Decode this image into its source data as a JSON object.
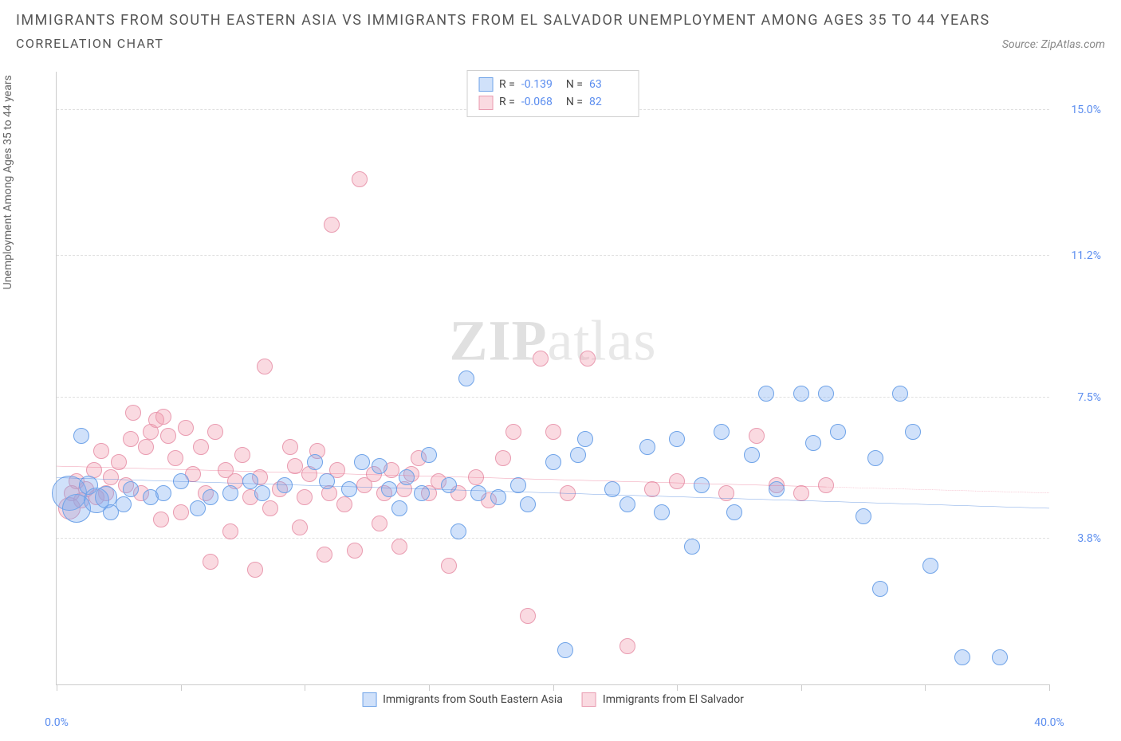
{
  "title": "IMMIGRANTS FROM SOUTH EASTERN ASIA VS IMMIGRANTS FROM EL SALVADOR UNEMPLOYMENT AMONG AGES 35 TO 44 YEARS",
  "subtitle": "CORRELATION CHART",
  "source": "Source: ZipAtlas.com",
  "ylabel": "Unemployment Among Ages 35 to 44 years",
  "watermark_a": "ZIP",
  "watermark_b": "atlas",
  "chart": {
    "type": "scatter",
    "xlim": [
      0,
      40
    ],
    "ylim": [
      0,
      16
    ],
    "xticks": [
      0,
      5,
      10,
      15,
      20,
      25,
      30,
      35,
      40
    ],
    "xaxis_min_label": "0.0%",
    "xaxis_max_label": "40.0%",
    "yticks": [
      {
        "v": 3.8,
        "label": "3.8%"
      },
      {
        "v": 7.5,
        "label": "7.5%"
      },
      {
        "v": 11.2,
        "label": "11.2%"
      },
      {
        "v": 15.0,
        "label": "15.0%"
      }
    ],
    "background_color": "#ffffff",
    "grid_color": "#e0e0e0",
    "axis_color": "#cccccc",
    "tick_label_color": "#5b8def",
    "point_base_radius": 10,
    "series": [
      {
        "name": "Immigrants from South Eastern Asia",
        "fill": "rgba(120,170,240,0.35)",
        "stroke": "#6fa3e8",
        "trend_color": "#3b78d8",
        "R": "-0.139",
        "N": "63",
        "trend": {
          "x1": 0,
          "y1": 5.4,
          "x2": 40,
          "y2": 4.6,
          "solid_until_x": 40
        },
        "points": [
          {
            "x": 0.5,
            "y": 5.0,
            "r": 22
          },
          {
            "x": 0.8,
            "y": 4.6,
            "r": 18
          },
          {
            "x": 1.0,
            "y": 6.5,
            "r": 10
          },
          {
            "x": 1.3,
            "y": 5.2,
            "r": 12
          },
          {
            "x": 1.6,
            "y": 4.8,
            "r": 16
          },
          {
            "x": 2.0,
            "y": 4.9,
            "r": 14
          },
          {
            "x": 2.2,
            "y": 4.5,
            "r": 10
          },
          {
            "x": 2.7,
            "y": 4.7,
            "r": 10
          },
          {
            "x": 3.0,
            "y": 5.1,
            "r": 10
          },
          {
            "x": 3.8,
            "y": 4.9,
            "r": 10
          },
          {
            "x": 4.3,
            "y": 5.0,
            "r": 10
          },
          {
            "x": 5.0,
            "y": 5.3,
            "r": 10
          },
          {
            "x": 5.7,
            "y": 4.6,
            "r": 10
          },
          {
            "x": 6.2,
            "y": 4.9,
            "r": 10
          },
          {
            "x": 7.0,
            "y": 5.0,
            "r": 10
          },
          {
            "x": 7.8,
            "y": 5.3,
            "r": 10
          },
          {
            "x": 8.3,
            "y": 5.0,
            "r": 10
          },
          {
            "x": 9.2,
            "y": 5.2,
            "r": 10
          },
          {
            "x": 10.4,
            "y": 5.8,
            "r": 10
          },
          {
            "x": 10.9,
            "y": 5.3,
            "r": 10
          },
          {
            "x": 11.8,
            "y": 5.1,
            "r": 10
          },
          {
            "x": 12.3,
            "y": 5.8,
            "r": 10
          },
          {
            "x": 13.0,
            "y": 5.7,
            "r": 10
          },
          {
            "x": 13.4,
            "y": 5.1,
            "r": 10
          },
          {
            "x": 13.8,
            "y": 4.6,
            "r": 10
          },
          {
            "x": 14.1,
            "y": 5.4,
            "r": 10
          },
          {
            "x": 14.7,
            "y": 5.0,
            "r": 10
          },
          {
            "x": 15.0,
            "y": 6.0,
            "r": 10
          },
          {
            "x": 15.8,
            "y": 5.2,
            "r": 10
          },
          {
            "x": 16.2,
            "y": 4.0,
            "r": 10
          },
          {
            "x": 16.5,
            "y": 8.0,
            "r": 10
          },
          {
            "x": 17.0,
            "y": 5.0,
            "r": 10
          },
          {
            "x": 17.8,
            "y": 4.9,
            "r": 10
          },
          {
            "x": 18.6,
            "y": 5.2,
            "r": 10
          },
          {
            "x": 19.0,
            "y": 4.7,
            "r": 10
          },
          {
            "x": 20.0,
            "y": 5.8,
            "r": 10
          },
          {
            "x": 20.5,
            "y": 0.9,
            "r": 10
          },
          {
            "x": 21.0,
            "y": 6.0,
            "r": 10
          },
          {
            "x": 21.3,
            "y": 6.4,
            "r": 10
          },
          {
            "x": 22.4,
            "y": 5.1,
            "r": 10
          },
          {
            "x": 23.0,
            "y": 4.7,
            "r": 10
          },
          {
            "x": 23.8,
            "y": 6.2,
            "r": 10
          },
          {
            "x": 24.4,
            "y": 4.5,
            "r": 10
          },
          {
            "x": 25.0,
            "y": 6.4,
            "r": 10
          },
          {
            "x": 25.6,
            "y": 3.6,
            "r": 10
          },
          {
            "x": 26.0,
            "y": 5.2,
            "r": 10
          },
          {
            "x": 26.8,
            "y": 6.6,
            "r": 10
          },
          {
            "x": 27.3,
            "y": 4.5,
            "r": 10
          },
          {
            "x": 28.0,
            "y": 6.0,
            "r": 10
          },
          {
            "x": 28.6,
            "y": 7.6,
            "r": 10
          },
          {
            "x": 29.0,
            "y": 5.1,
            "r": 10
          },
          {
            "x": 30.0,
            "y": 7.6,
            "r": 10
          },
          {
            "x": 30.5,
            "y": 6.3,
            "r": 10
          },
          {
            "x": 31.0,
            "y": 7.6,
            "r": 10
          },
          {
            "x": 31.5,
            "y": 6.6,
            "r": 10
          },
          {
            "x": 32.5,
            "y": 4.4,
            "r": 10
          },
          {
            "x": 33.0,
            "y": 5.9,
            "r": 10
          },
          {
            "x": 33.2,
            "y": 2.5,
            "r": 10
          },
          {
            "x": 34.0,
            "y": 7.6,
            "r": 10
          },
          {
            "x": 34.5,
            "y": 6.6,
            "r": 10
          },
          {
            "x": 35.2,
            "y": 3.1,
            "r": 10
          },
          {
            "x": 36.5,
            "y": 0.7,
            "r": 10
          },
          {
            "x": 38.0,
            "y": 0.7,
            "r": 10
          }
        ]
      },
      {
        "name": "Immigrants from El Salvador",
        "fill": "rgba(240,150,170,0.35)",
        "stroke": "#e99bb0",
        "trend_color": "#e86a8a",
        "R": "-0.068",
        "N": "82",
        "trend": {
          "x1": 0,
          "y1": 5.7,
          "x2": 40,
          "y2": 5.0,
          "solid_until_x": 31
        },
        "points": [
          {
            "x": 0.5,
            "y": 4.6,
            "r": 14
          },
          {
            "x": 0.6,
            "y": 5.0,
            "r": 10
          },
          {
            "x": 0.8,
            "y": 5.3,
            "r": 10
          },
          {
            "x": 1.0,
            "y": 4.8,
            "r": 10
          },
          {
            "x": 1.2,
            "y": 5.1,
            "r": 10
          },
          {
            "x": 1.5,
            "y": 5.6,
            "r": 10
          },
          {
            "x": 1.6,
            "y": 4.9,
            "r": 10
          },
          {
            "x": 1.8,
            "y": 6.1,
            "r": 10
          },
          {
            "x": 2.0,
            "y": 5.0,
            "r": 10
          },
          {
            "x": 2.2,
            "y": 5.4,
            "r": 10
          },
          {
            "x": 2.5,
            "y": 5.8,
            "r": 10
          },
          {
            "x": 2.8,
            "y": 5.2,
            "r": 10
          },
          {
            "x": 3.0,
            "y": 6.4,
            "r": 10
          },
          {
            "x": 3.1,
            "y": 7.1,
            "r": 10
          },
          {
            "x": 3.4,
            "y": 5.0,
            "r": 10
          },
          {
            "x": 3.6,
            "y": 6.2,
            "r": 10
          },
          {
            "x": 3.8,
            "y": 6.6,
            "r": 10
          },
          {
            "x": 4.0,
            "y": 6.9,
            "r": 10
          },
          {
            "x": 4.2,
            "y": 4.3,
            "r": 10
          },
          {
            "x": 4.3,
            "y": 7.0,
            "r": 10
          },
          {
            "x": 4.5,
            "y": 6.5,
            "r": 10
          },
          {
            "x": 4.8,
            "y": 5.9,
            "r": 10
          },
          {
            "x": 5.0,
            "y": 4.5,
            "r": 10
          },
          {
            "x": 5.2,
            "y": 6.7,
            "r": 10
          },
          {
            "x": 5.5,
            "y": 5.5,
            "r": 10
          },
          {
            "x": 5.8,
            "y": 6.2,
            "r": 10
          },
          {
            "x": 6.0,
            "y": 5.0,
            "r": 10
          },
          {
            "x": 6.2,
            "y": 3.2,
            "r": 10
          },
          {
            "x": 6.4,
            "y": 6.6,
            "r": 10
          },
          {
            "x": 6.8,
            "y": 5.6,
            "r": 10
          },
          {
            "x": 7.0,
            "y": 4.0,
            "r": 10
          },
          {
            "x": 7.2,
            "y": 5.3,
            "r": 10
          },
          {
            "x": 7.5,
            "y": 6.0,
            "r": 10
          },
          {
            "x": 7.8,
            "y": 4.9,
            "r": 10
          },
          {
            "x": 8.0,
            "y": 3.0,
            "r": 10
          },
          {
            "x": 8.2,
            "y": 5.4,
            "r": 10
          },
          {
            "x": 8.4,
            "y": 8.3,
            "r": 10
          },
          {
            "x": 8.6,
            "y": 4.6,
            "r": 10
          },
          {
            "x": 9.0,
            "y": 5.1,
            "r": 10
          },
          {
            "x": 9.4,
            "y": 6.2,
            "r": 10
          },
          {
            "x": 9.6,
            "y": 5.7,
            "r": 10
          },
          {
            "x": 9.8,
            "y": 4.1,
            "r": 10
          },
          {
            "x": 10.0,
            "y": 4.9,
            "r": 10
          },
          {
            "x": 10.2,
            "y": 5.5,
            "r": 10
          },
          {
            "x": 10.5,
            "y": 6.1,
            "r": 10
          },
          {
            "x": 10.8,
            "y": 3.4,
            "r": 10
          },
          {
            "x": 11.0,
            "y": 5.0,
            "r": 10
          },
          {
            "x": 11.1,
            "y": 12.0,
            "r": 10
          },
          {
            "x": 11.3,
            "y": 5.6,
            "r": 10
          },
          {
            "x": 11.6,
            "y": 4.7,
            "r": 10
          },
          {
            "x": 12.0,
            "y": 3.5,
            "r": 10
          },
          {
            "x": 12.2,
            "y": 13.2,
            "r": 10
          },
          {
            "x": 12.4,
            "y": 5.2,
            "r": 10
          },
          {
            "x": 12.8,
            "y": 5.5,
            "r": 10
          },
          {
            "x": 13.0,
            "y": 4.2,
            "r": 10
          },
          {
            "x": 13.2,
            "y": 5.0,
            "r": 10
          },
          {
            "x": 13.5,
            "y": 5.6,
            "r": 10
          },
          {
            "x": 13.8,
            "y": 3.6,
            "r": 10
          },
          {
            "x": 14.0,
            "y": 5.1,
            "r": 10
          },
          {
            "x": 14.3,
            "y": 5.5,
            "r": 10
          },
          {
            "x": 14.6,
            "y": 5.9,
            "r": 10
          },
          {
            "x": 15.0,
            "y": 5.0,
            "r": 10
          },
          {
            "x": 15.4,
            "y": 5.3,
            "r": 10
          },
          {
            "x": 15.8,
            "y": 3.1,
            "r": 10
          },
          {
            "x": 16.2,
            "y": 5.0,
            "r": 10
          },
          {
            "x": 16.9,
            "y": 5.4,
            "r": 10
          },
          {
            "x": 17.4,
            "y": 4.8,
            "r": 10
          },
          {
            "x": 18.0,
            "y": 5.9,
            "r": 10
          },
          {
            "x": 18.4,
            "y": 6.6,
            "r": 10
          },
          {
            "x": 19.0,
            "y": 1.8,
            "r": 10
          },
          {
            "x": 19.5,
            "y": 8.5,
            "r": 10
          },
          {
            "x": 20.0,
            "y": 6.6,
            "r": 10
          },
          {
            "x": 20.6,
            "y": 5.0,
            "r": 10
          },
          {
            "x": 21.4,
            "y": 8.5,
            "r": 10
          },
          {
            "x": 23.0,
            "y": 1.0,
            "r": 10
          },
          {
            "x": 24.0,
            "y": 5.1,
            "r": 10
          },
          {
            "x": 25.0,
            "y": 5.3,
            "r": 10
          },
          {
            "x": 27.0,
            "y": 5.0,
            "r": 10
          },
          {
            "x": 28.2,
            "y": 6.5,
            "r": 10
          },
          {
            "x": 29.0,
            "y": 5.2,
            "r": 10
          },
          {
            "x": 30.0,
            "y": 5.0,
            "r": 10
          },
          {
            "x": 31.0,
            "y": 5.2,
            "r": 10
          }
        ]
      }
    ]
  },
  "legend_top": {
    "r_label": "R =",
    "n_label": "N ="
  }
}
